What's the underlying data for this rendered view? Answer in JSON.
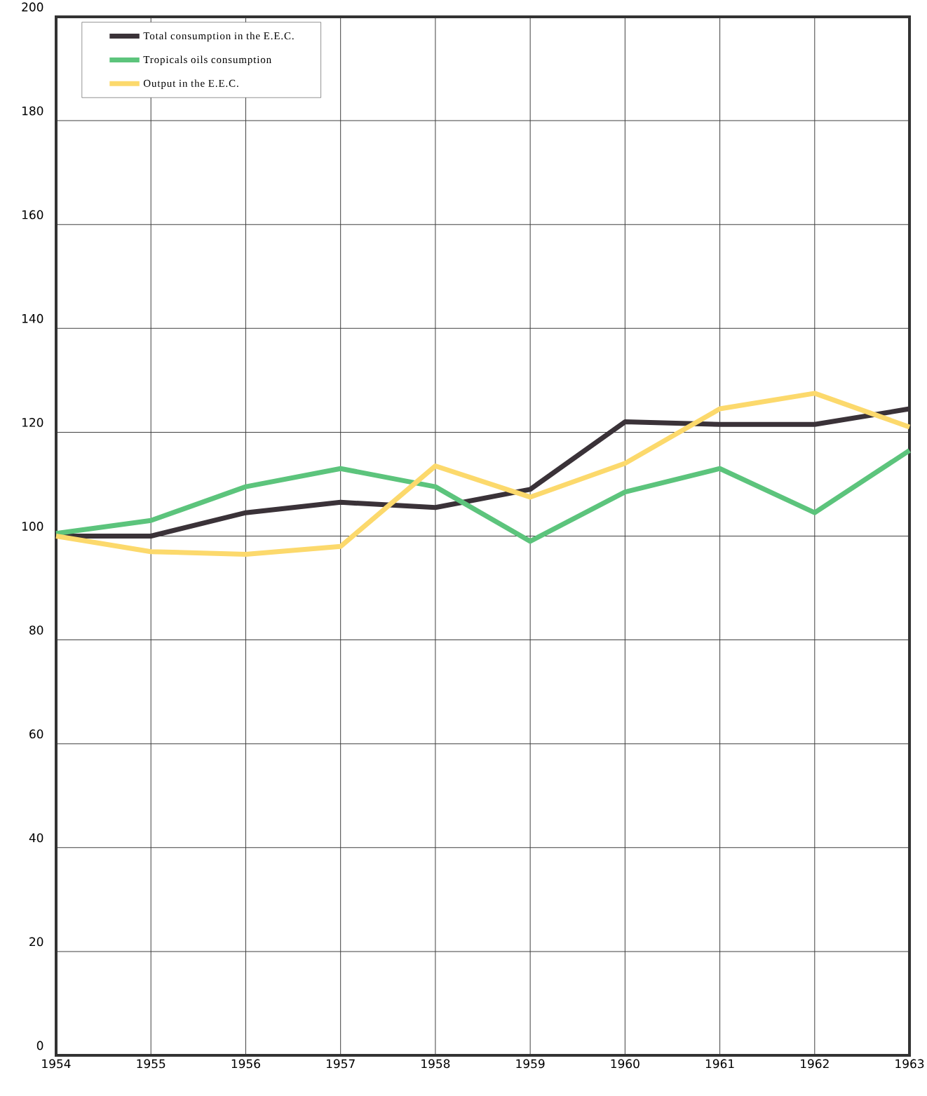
{
  "chart_data": {
    "type": "line",
    "x": [
      1954,
      1955,
      1956,
      1957,
      1958,
      1959,
      1960,
      1961,
      1962,
      1963
    ],
    "series": [
      {
        "name": "Total consumption in the E.E.C.",
        "color": "#3a3238",
        "values": [
          100,
          100,
          104.5,
          106.5,
          105.5,
          109,
          122,
          121.5,
          121.5,
          124.5
        ]
      },
      {
        "name": "Tropicals oils consumption",
        "color": "#5cc47c",
        "values": [
          100.5,
          103,
          109.5,
          113,
          109.5,
          99,
          108.5,
          113,
          104.5,
          116.5
        ]
      },
      {
        "name": "Output in the E.E.C.",
        "color": "#fcd96c",
        "values": [
          100,
          97,
          96.5,
          98,
          113.5,
          107.5,
          114,
          124.5,
          127.5,
          121
        ]
      }
    ],
    "xlim": [
      1954,
      1963
    ],
    "ylim": [
      0,
      200
    ],
    "xticks": [
      1954,
      1955,
      1956,
      1957,
      1958,
      1959,
      1960,
      1961,
      1962,
      1963
    ],
    "yticks": [
      0,
      20,
      40,
      60,
      80,
      100,
      120,
      140,
      160,
      180,
      200
    ],
    "grid": true,
    "legend": "top left"
  }
}
